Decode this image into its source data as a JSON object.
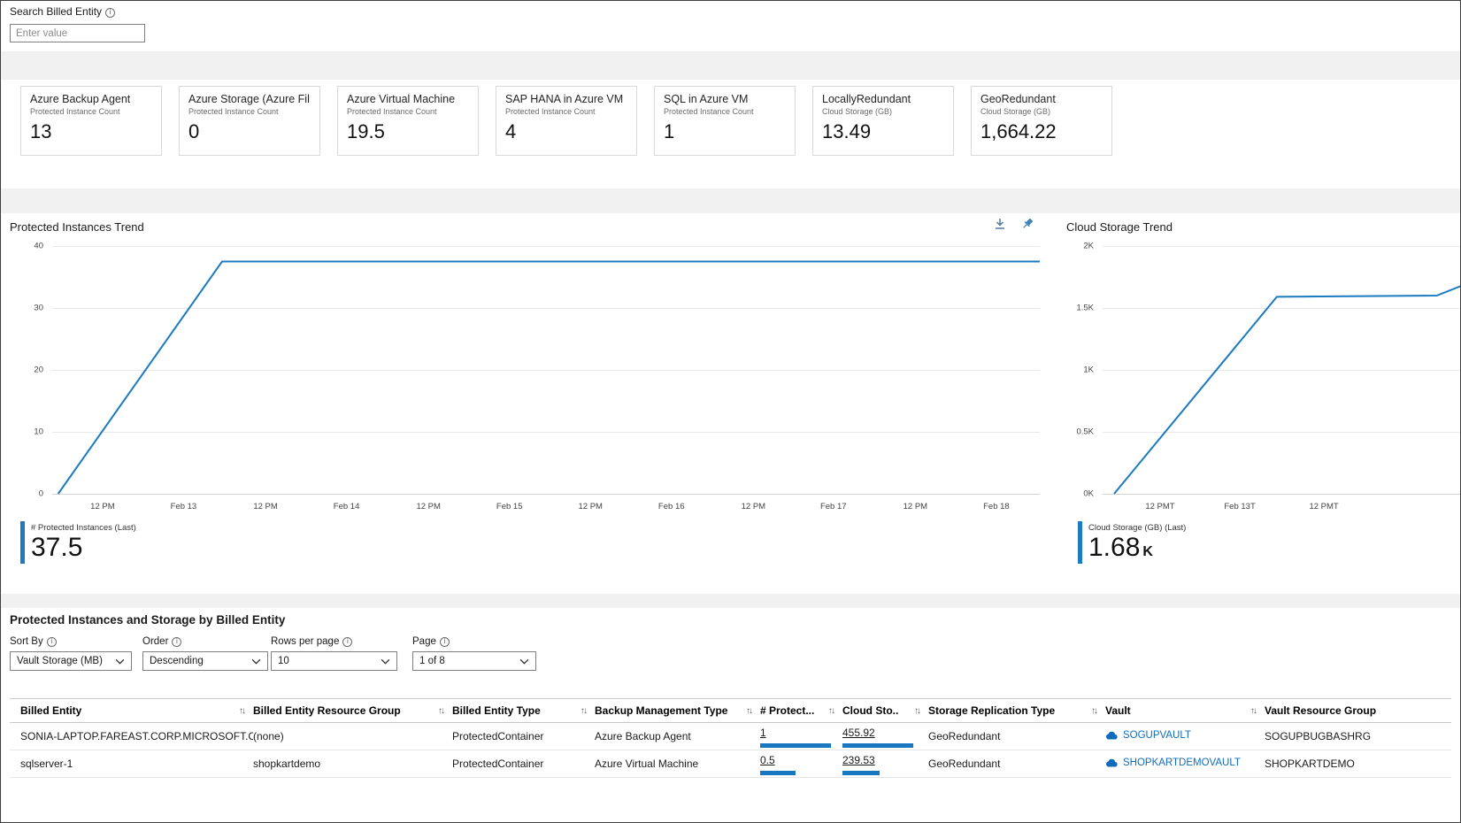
{
  "search": {
    "label": "Search Billed Entity",
    "placeholder": "Enter value"
  },
  "colors": {
    "line": "#1c7ac0",
    "link": "#0f6cbd",
    "bar": "#1877c0"
  },
  "cards": [
    {
      "title": "Azure Backup Agent",
      "subtitle": "Protected Instance Count",
      "value": "13"
    },
    {
      "title": "Azure Storage (Azure Fil...",
      "subtitle": "Protected Instance Count",
      "value": "0"
    },
    {
      "title": "Azure Virtual Machine",
      "subtitle": "Protected Instance Count",
      "value": "19.5"
    },
    {
      "title": "SAP HANA in Azure VM",
      "subtitle": "Protected Instance Count",
      "value": "4"
    },
    {
      "title": "SQL in Azure VM",
      "subtitle": "Protected Instance Count",
      "value": "1"
    },
    {
      "title": "LocallyRedundant",
      "subtitle": "Cloud Storage (GB)",
      "value": "13.49"
    },
    {
      "title": "GeoRedundant",
      "subtitle": "Cloud Storage (GB)",
      "value": "1,664.22"
    }
  ],
  "protected_chart": {
    "type": "line",
    "title": "Protected Instances Trend",
    "y_max": 40,
    "y_ticks": [
      "40",
      "30",
      "20",
      "10",
      "0"
    ],
    "x_ticks": [
      {
        "label": "12 PM",
        "pos": 5.1
      },
      {
        "label": "Feb 13",
        "pos": 13.3
      },
      {
        "label": "12 PM",
        "pos": 21.6
      },
      {
        "label": "Feb 14",
        "pos": 29.8
      },
      {
        "label": "12 PM",
        "pos": 38.1
      },
      {
        "label": "Feb 15",
        "pos": 46.3
      },
      {
        "label": "12 PM",
        "pos": 54.5
      },
      {
        "label": "Feb 16",
        "pos": 62.7
      },
      {
        "label": "12 PM",
        "pos": 71.0
      },
      {
        "label": "Feb 17",
        "pos": 79.1
      },
      {
        "label": "12 PM",
        "pos": 87.4
      },
      {
        "label": "Feb 18",
        "pos": 95.6
      }
    ],
    "series": [
      {
        "name": "# Protected Instances",
        "points": [
          [
            0.006,
            0
          ],
          [
            0.172,
            37.5
          ],
          [
            1.0,
            37.5
          ]
        ]
      }
    ],
    "legend": {
      "label": "# Protected Instances (Last)",
      "value": "37.5",
      "unit": ""
    }
  },
  "storage_chart": {
    "type": "line",
    "title": "Cloud Storage Trend",
    "y_max": 2000,
    "y_ticks": [
      "2K",
      "1.5K",
      "1K",
      "0.5K",
      "0K"
    ],
    "x_ticks": [
      {
        "label": "12 PMT",
        "pos": 16.0
      },
      {
        "label": "Feb 13T",
        "pos": 38.2
      },
      {
        "label": "12 PMT",
        "pos": 61.6
      }
    ],
    "series": [
      {
        "name": "Cloud Storage (GB)",
        "points": [
          [
            0.032,
            0
          ],
          [
            0.485,
            1590
          ],
          [
            0.93,
            1600
          ],
          [
            1.0,
            1680
          ]
        ]
      }
    ],
    "legend": {
      "label": "Cloud Storage (GB) (Last)",
      "value": "1.68",
      "unit": "K"
    }
  },
  "table_section": {
    "title": "Protected Instances and Storage by Billed Entity"
  },
  "filters": [
    {
      "id": "sort-by",
      "label": "Sort By",
      "value": "Vault Storage (MB)"
    },
    {
      "id": "order",
      "label": "Order",
      "value": "Descending"
    },
    {
      "id": "rows-per-page",
      "label": "Rows per page",
      "value": "10"
    },
    {
      "id": "page",
      "label": "Page",
      "value": "1 of 8"
    }
  ],
  "table": {
    "columns": [
      {
        "label": "Billed Entity",
        "sortable": true
      },
      {
        "label": "Billed Entity Resource Group",
        "sortable": true
      },
      {
        "label": "Billed Entity Type",
        "sortable": true
      },
      {
        "label": "Backup Management Type",
        "sortable": true
      },
      {
        "label": "# Protect...",
        "sortable": true
      },
      {
        "label": "Cloud Sto..",
        "sortable": true
      },
      {
        "label": "Storage Replication Type",
        "sortable": true
      },
      {
        "label": "Vault",
        "sortable": true
      },
      {
        "label": "Vault Resource Group",
        "sortable": false
      }
    ],
    "rows": [
      {
        "billed_entity": "SONIA-LAPTOP.FAREAST.CORP.MICROSOFT.COM",
        "resource_group": "(none)",
        "entity_type": "ProtectedContainer",
        "backup_type": "Azure Backup Agent",
        "protected_count": "1",
        "protected_bar": 1.0,
        "cloud_storage": "455.92",
        "storage_bar": 1.0,
        "replication": "GeoRedundant",
        "vault": "SOGUPVAULT",
        "vault_rg": "SOGUPBUGBASHRG"
      },
      {
        "billed_entity": "sqlserver-1",
        "resource_group": "shopkartdemo",
        "entity_type": "ProtectedContainer",
        "backup_type": "Azure Virtual Machine",
        "protected_count": "0.5",
        "protected_bar": 0.5,
        "cloud_storage": "239.53",
        "storage_bar": 0.53,
        "replication": "GeoRedundant",
        "vault": "SHOPKARTDEMOVAULT",
        "vault_rg": "SHOPKARTDEMO"
      }
    ]
  }
}
